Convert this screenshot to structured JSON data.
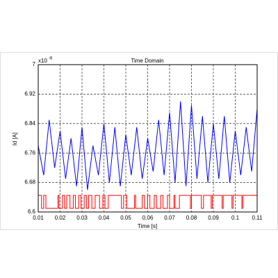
{
  "chart_data": {
    "type": "line",
    "title": "Time Domain",
    "x_label": "Time [s]",
    "y_label": "Id [A]",
    "y_multiplier": "x10",
    "y_exponent": "-6",
    "xlim": [
      0.01,
      0.11
    ],
    "xticks": [
      0.01,
      0.02,
      0.03,
      0.04,
      0.05,
      0.06,
      0.07,
      0.08,
      0.09,
      0.1,
      0.11
    ],
    "ylim": [
      6.6,
      7
    ],
    "yticks": [
      6.6,
      6.68,
      6.76,
      6.84,
      6.92,
      7
    ],
    "grid": true,
    "series": [
      {
        "color": "#0000ff",
        "x": [
          0.01,
          0.0125,
          0.015,
          0.0175,
          0.02,
          0.0225,
          0.025,
          0.0275,
          0.03,
          0.0325,
          0.035,
          0.0375,
          0.04,
          0.0425,
          0.045,
          0.0475,
          0.05,
          0.0525,
          0.055,
          0.0575,
          0.06,
          0.0625,
          0.065,
          0.0675,
          0.07,
          0.0725,
          0.075,
          0.0775,
          0.08,
          0.0825,
          0.085,
          0.0875,
          0.09,
          0.0925,
          0.095,
          0.0975,
          0.1,
          0.1025,
          0.105,
          0.1075,
          0.11
        ],
        "values": [
          6.78,
          6.7,
          6.85,
          6.72,
          6.82,
          6.69,
          6.8,
          6.67,
          6.83,
          6.66,
          6.78,
          6.7,
          6.84,
          6.68,
          6.83,
          6.67,
          6.81,
          6.7,
          6.83,
          6.69,
          6.8,
          6.71,
          6.85,
          6.7,
          6.87,
          6.68,
          6.9,
          6.67,
          6.89,
          6.69,
          6.86,
          6.68,
          6.84,
          6.69,
          6.86,
          6.68,
          6.82,
          6.7,
          6.83,
          6.71,
          6.88
        ]
      },
      {
        "color": "#ff0000",
        "x": [
          0.01,
          0.0115,
          0.0115,
          0.0125,
          0.0125,
          0.0135,
          0.0135,
          0.019,
          0.019,
          0.0195,
          0.0195,
          0.021,
          0.021,
          0.022,
          0.022,
          0.023,
          0.023,
          0.0245,
          0.0245,
          0.026,
          0.026,
          0.027,
          0.027,
          0.0285,
          0.0285,
          0.0295,
          0.0295,
          0.031,
          0.031,
          0.032,
          0.032,
          0.033,
          0.033,
          0.0345,
          0.0345,
          0.036,
          0.036,
          0.038,
          0.038,
          0.0395,
          0.0395,
          0.0405,
          0.0405,
          0.042,
          0.042,
          0.048,
          0.048,
          0.049,
          0.049,
          0.0505,
          0.0505,
          0.054,
          0.054,
          0.0545,
          0.0545,
          0.0575,
          0.0575,
          0.0585,
          0.0585,
          0.06,
          0.06,
          0.061,
          0.061,
          0.063,
          0.063,
          0.064,
          0.064,
          0.066,
          0.066,
          0.067,
          0.067,
          0.069,
          0.069,
          0.07,
          0.07,
          0.072,
          0.072,
          0.0725,
          0.0725,
          0.0745,
          0.0745,
          0.0795,
          0.0795,
          0.08,
          0.08,
          0.0845,
          0.0845,
          0.0855,
          0.0855,
          0.089,
          0.089,
          0.0895,
          0.0895,
          0.094,
          0.094,
          0.0945,
          0.0945,
          0.0985,
          0.0985,
          0.099,
          0.099,
          0.103,
          0.103,
          0.1035,
          0.1035,
          0.11
        ],
        "values": [
          6.645,
          6.645,
          6.61,
          6.61,
          6.645,
          6.645,
          6.61,
          6.61,
          6.645,
          6.645,
          6.61,
          6.61,
          6.645,
          6.645,
          6.61,
          6.61,
          6.645,
          6.645,
          6.61,
          6.61,
          6.645,
          6.645,
          6.61,
          6.61,
          6.645,
          6.645,
          6.61,
          6.61,
          6.645,
          6.645,
          6.61,
          6.61,
          6.645,
          6.645,
          6.61,
          6.61,
          6.645,
          6.645,
          6.61,
          6.61,
          6.645,
          6.645,
          6.61,
          6.61,
          6.645,
          6.645,
          6.61,
          6.61,
          6.645,
          6.645,
          6.61,
          6.61,
          6.645,
          6.645,
          6.61,
          6.61,
          6.645,
          6.645,
          6.61,
          6.61,
          6.645,
          6.645,
          6.61,
          6.61,
          6.645,
          6.645,
          6.61,
          6.61,
          6.645,
          6.645,
          6.61,
          6.61,
          6.645,
          6.645,
          6.61,
          6.61,
          6.645,
          6.645,
          6.61,
          6.61,
          6.645,
          6.645,
          6.61,
          6.61,
          6.645,
          6.645,
          6.61,
          6.61,
          6.645,
          6.645,
          6.61,
          6.61,
          6.645,
          6.645,
          6.61,
          6.61,
          6.645,
          6.645,
          6.61,
          6.61,
          6.645,
          6.645,
          6.61,
          6.61,
          6.645,
          6.645
        ]
      }
    ]
  }
}
